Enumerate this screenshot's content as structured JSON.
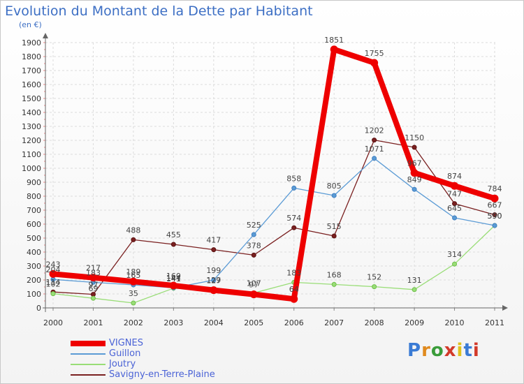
{
  "title": "Evolution du Montant de la Dette par Habitant",
  "subtitle": "(en €)",
  "logo": {
    "text": "Proxiti",
    "colors": [
      "#3a7bd5",
      "#e08a1e",
      "#3a9c3a",
      "#d23a2a",
      "#e0c21e",
      "#3a7bd5",
      "#d23a2a"
    ]
  },
  "chart_data": {
    "type": "line",
    "x": [
      "2000",
      "2001",
      "2002",
      "2003",
      "2004",
      "2005",
      "2006",
      "2007",
      "2008",
      "2009",
      "2010",
      "2011"
    ],
    "ylim": [
      0,
      1900
    ],
    "yticks": [
      0,
      100,
      200,
      300,
      400,
      500,
      600,
      700,
      800,
      900,
      1000,
      1100,
      1200,
      1300,
      1400,
      1500,
      1600,
      1700,
      1800,
      1900
    ],
    "grid": true,
    "legend_position": "bottom-left",
    "series": [
      {
        "name": "VIGNES",
        "color": "#ee0000",
        "width": 8,
        "values": [
          243,
          217,
          189,
          160,
          127,
          97,
          64,
          1851,
          1755,
          967,
          874,
          784
        ],
        "labels": [
          "243",
          "217",
          "189",
          "160",
          "127",
          "97",
          "64",
          "1851",
          "1755",
          "967",
          "874",
          "784"
        ]
      },
      {
        "name": "Guillon",
        "color": "#5b9bd5",
        "width": 1.3,
        "values": [
          204,
          183,
          165,
          144,
          199,
          525,
          858,
          805,
          1071,
          849,
          645,
          590
        ],
        "labels": [
          "204",
          "183",
          "165",
          "144",
          "199",
          "525",
          "858",
          "805",
          "1071",
          "849",
          "645",
          "590"
        ]
      },
      {
        "name": "Joutry",
        "color": "#99dd77",
        "width": 1.3,
        "values": [
          102,
          69,
          35,
          141,
          129,
          107,
          183,
          168,
          152,
          131,
          314,
          590
        ],
        "labels": [
          "102",
          "69",
          "35",
          "141",
          "129",
          "107",
          "183",
          "168",
          "152",
          "131",
          "314",
          "590"
        ]
      },
      {
        "name": "Savigny-en-Terre-Plaine",
        "color": "#7a2020",
        "width": 1.3,
        "values": [
          114,
          97,
          488,
          455,
          417,
          378,
          574,
          515,
          1202,
          1150,
          747,
          667
        ],
        "labels": [
          "114",
          "97",
          "488",
          "455",
          "417",
          "378",
          "574",
          "515",
          "1202",
          "1150",
          "747",
          "667"
        ]
      }
    ]
  }
}
